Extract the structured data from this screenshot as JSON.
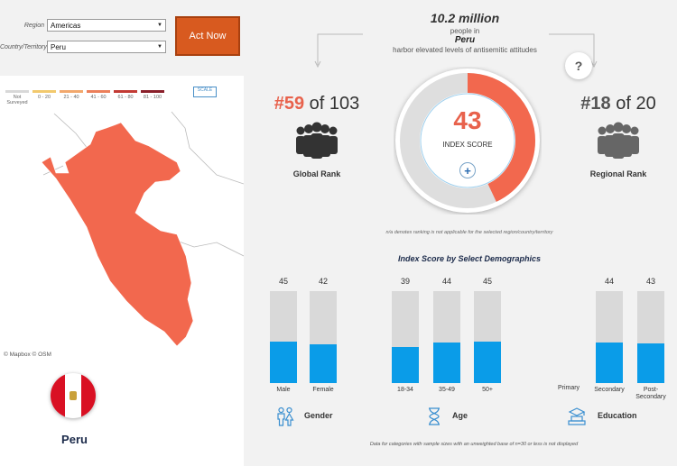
{
  "filters": {
    "region_label": "Region",
    "region_value": "Americas",
    "country_label": "Country/Territory",
    "country_value": "Peru",
    "act_button": "Act Now"
  },
  "map": {
    "legend": [
      {
        "label": "Not\nSurveyed",
        "color": "#d8d8d8"
      },
      {
        "label": "0 - 20",
        "color": "#f2c96d"
      },
      {
        "label": "21 - 40",
        "color": "#f2a86d"
      },
      {
        "label": "41 - 60",
        "color": "#ec7f5a"
      },
      {
        "label": "61 - 80",
        "color": "#c23a34"
      },
      {
        "label": "81 - 100",
        "color": "#8a1f2a"
      }
    ],
    "scale_label": "SCALE",
    "attribution": "© Mapbox © OSM",
    "highlight_color": "#f2684e"
  },
  "country": {
    "name": "Peru"
  },
  "headline": {
    "count": "10.2 million",
    "people_in": "people in",
    "country": "Peru",
    "description": "harbor elevated levels of antisemitic attitudes"
  },
  "global_rank": {
    "rank": "#59",
    "of": "of 103",
    "label": "Global Rank"
  },
  "regional_rank": {
    "rank": "#18",
    "of": "of 20",
    "label": "Regional Rank"
  },
  "index_score": {
    "value": "43",
    "label": "INDEX SCORE",
    "fraction": 0.43
  },
  "na_note": "n/a denotes ranking is not applicable for the selected region/country/territory",
  "demographics": {
    "title": "Index Score by Select Demographics",
    "gender": {
      "label": "Gender",
      "bars": [
        {
          "label": "Male",
          "value": 45
        },
        {
          "label": "Female",
          "value": 42
        }
      ]
    },
    "age": {
      "label": "Age",
      "bars": [
        {
          "label": "18-34",
          "value": 39
        },
        {
          "label": "35-49",
          "value": 44
        },
        {
          "label": "50+",
          "value": 45
        }
      ]
    },
    "education": {
      "label": "Education",
      "primary_label": "Primary",
      "bars": [
        {
          "label": "Secondary",
          "value": 44
        },
        {
          "label": "Post-\nSecondary",
          "value": 43
        }
      ]
    }
  },
  "footer_note": "Data for categories with sample sizes with an unweighted base of n=30 or less is not displayed",
  "colors": {
    "accent": "#e8624c",
    "bar": "#0a9ce8",
    "track": "#d9d9d9",
    "button": "#d85a1f"
  }
}
